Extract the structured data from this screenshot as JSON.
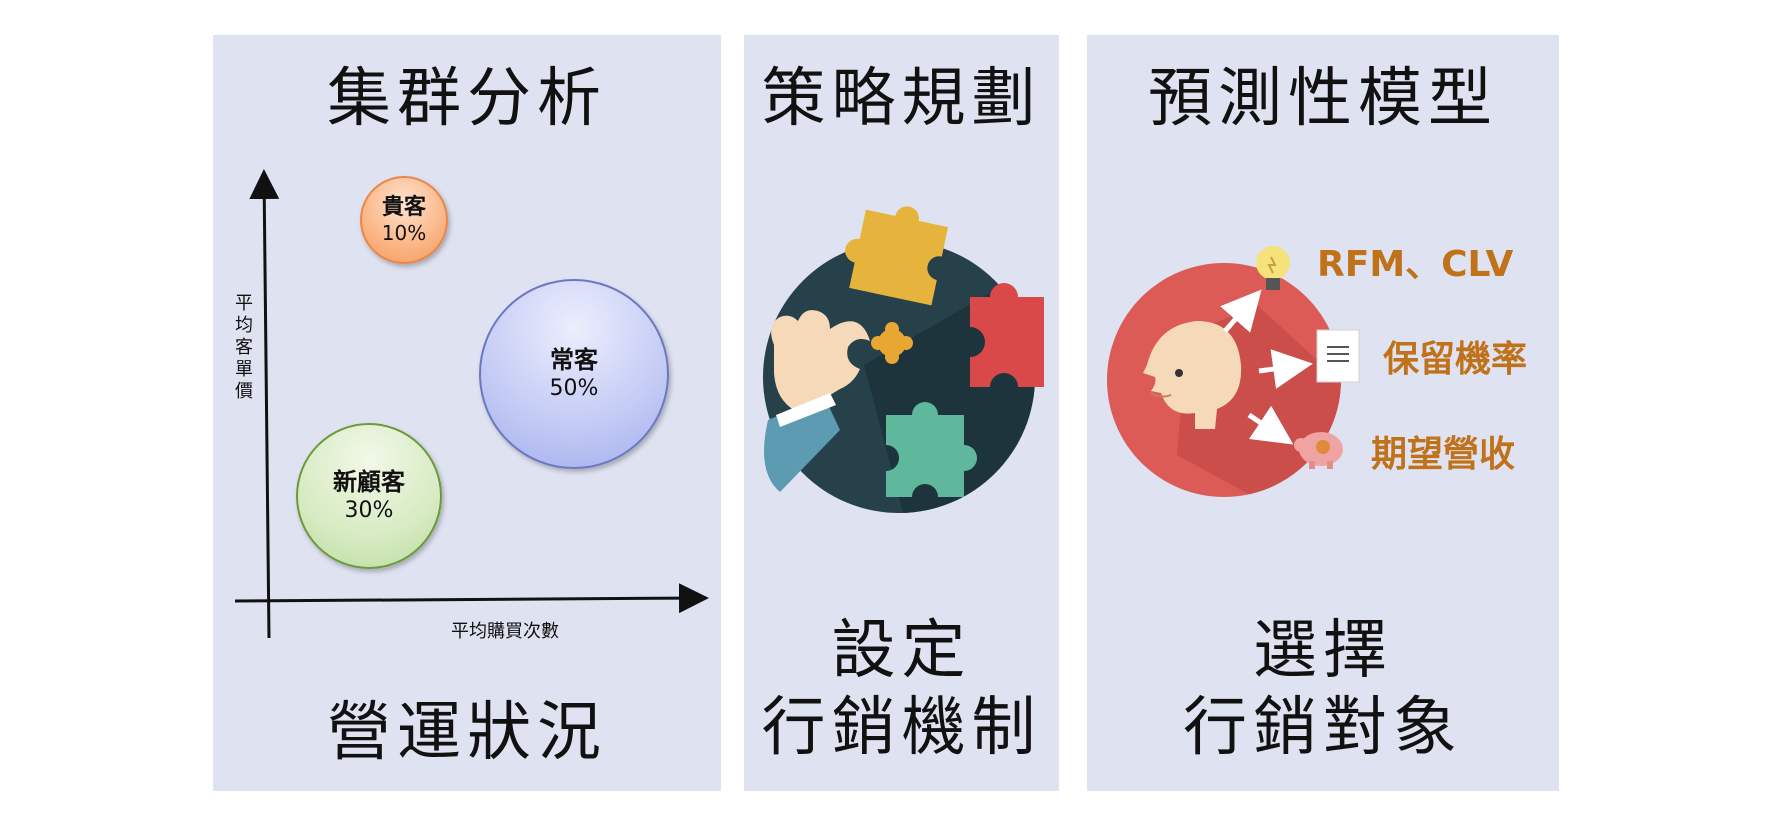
{
  "panels": {
    "cluster": {
      "title": "集群分析",
      "bottom": "營運狀況",
      "y_axis_label": "平均客單價",
      "x_axis_label": "平均購買次數",
      "bubbles": {
        "vip": {
          "name": "貴客",
          "pct": "10%"
        },
        "regular": {
          "name": "常客",
          "pct": "50%"
        },
        "new": {
          "name": "新顧客",
          "pct": "30%"
        }
      }
    },
    "strategy": {
      "title": "策略規劃",
      "bottom_line1": "設定",
      "bottom_line2": "行銷機制"
    },
    "predict": {
      "title": "預測性模型",
      "bottom_line1": "選擇",
      "bottom_line2": "行銷對象",
      "labels": {
        "rfm": "RFM、CLV",
        "retention": "保留機率",
        "revenue": "期望營收"
      }
    }
  },
  "colors": {
    "panel_bg": "#dfe3f1",
    "accent_orange": "#c0721b",
    "red_circle": "#dc5b57",
    "dark_circle": "#27414a"
  },
  "icons": [
    "puzzle-icon",
    "hand-icon",
    "head-icon",
    "lightbulb-icon",
    "document-icon",
    "piggy-bank-icon",
    "arrow-icon"
  ]
}
